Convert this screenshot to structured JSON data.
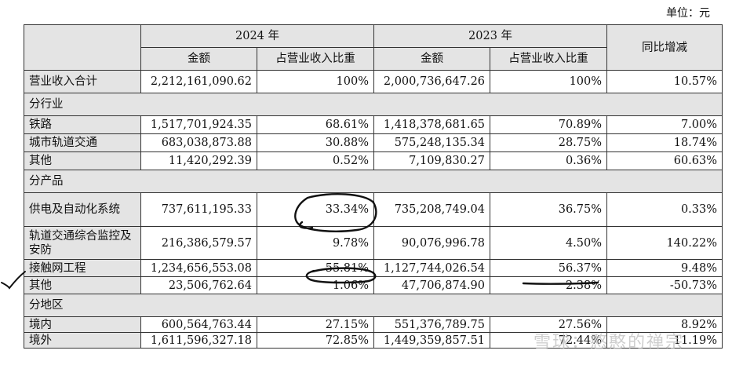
{
  "unit": "单位：元",
  "header": {
    "y2024": "2024 年",
    "y2023": "2023 年",
    "yoy": "同比增减",
    "amount": "金额",
    "share": "占营业收入比重"
  },
  "total": {
    "label": "营业收入合计",
    "a24": "2,212,161,090.62",
    "s24": "100%",
    "a23": "2,000,736,647.26",
    "s23": "100%",
    "yoy": "10.57%"
  },
  "sections": {
    "industry": "分行业",
    "product": "分产品",
    "region": "分地区"
  },
  "industry": [
    {
      "label": "铁路",
      "a24": "1,517,701,924.35",
      "s24": "68.61%",
      "a23": "1,418,378,681.65",
      "s23": "70.89%",
      "yoy": "7.00%"
    },
    {
      "label": "城市轨道交通",
      "a24": "683,038,873.88",
      "s24": "30.88%",
      "a23": "575,248,135.34",
      "s23": "28.75%",
      "yoy": "18.74%"
    },
    {
      "label": "其他",
      "a24": "11,420,292.39",
      "s24": "0.52%",
      "a23": "7,109,830.27",
      "s23": "0.36%",
      "yoy": "60.63%"
    }
  ],
  "product": [
    {
      "label": "供电及自动化系统",
      "a24": "737,611,195.33",
      "s24": "33.34%",
      "a23": "735,208,749.04",
      "s23": "36.75%",
      "yoy": "0.33%"
    },
    {
      "label": "轨道交通综合监控及安防",
      "a24": "216,386,579.57",
      "s24": "9.78%",
      "a23": "90,076,996.78",
      "s23": "4.50%",
      "yoy": "140.22%"
    },
    {
      "label": "接触网工程",
      "a24": "1,234,656,553.08",
      "s24": "55.81%",
      "a23": "1,127,744,026.54",
      "s23": "56.37%",
      "yoy": "9.48%"
    },
    {
      "label": "其他",
      "a24": "23,506,762.64",
      "s24": "1.06%",
      "a23": "47,706,874.90",
      "s23": "2.38%",
      "yoy": "-50.73%"
    }
  ],
  "region": [
    {
      "label": "境内",
      "a24": "600,564,763.44",
      "s24": "27.15%",
      "a23": "551,376,789.75",
      "s23": "27.56%",
      "yoy": "8.92%"
    },
    {
      "label": "境外",
      "a24": "1,611,596,327.18",
      "s24": "72.85%",
      "a23": "1,449,359,857.51",
      "s23": "72.44%",
      "yoy": "11.19%"
    }
  ],
  "watermark": "雪球：憨憨的禅宗",
  "colors": {
    "header_bg": "#e4e4e4",
    "border": "#333333",
    "ink": "#111111"
  }
}
